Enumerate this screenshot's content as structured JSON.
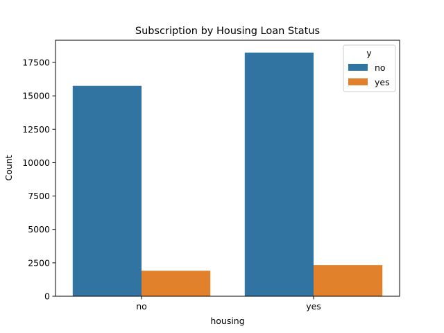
{
  "chart_data": {
    "type": "bar",
    "title": "Subscription by Housing Loan Status",
    "xlabel": "housing",
    "ylabel": "Count",
    "categories": [
      "no",
      "yes"
    ],
    "series": [
      {
        "name": "no",
        "color": "#3274a1",
        "values": [
          15750,
          18240
        ]
      },
      {
        "name": "yes",
        "color": "#e1812c",
        "values": [
          1910,
          2330
        ]
      }
    ],
    "ylim": [
      0,
      19163
    ],
    "yticks": [
      0,
      2500,
      5000,
      7500,
      10000,
      12500,
      15000,
      17500
    ],
    "ytick_labels": [
      "0",
      "2500",
      "5000",
      "7500",
      "10000",
      "12500",
      "15000",
      "17500"
    ],
    "legend": {
      "title": "y",
      "placement": "top-right",
      "labels": [
        "no",
        "yes"
      ]
    },
    "grid": false
  }
}
